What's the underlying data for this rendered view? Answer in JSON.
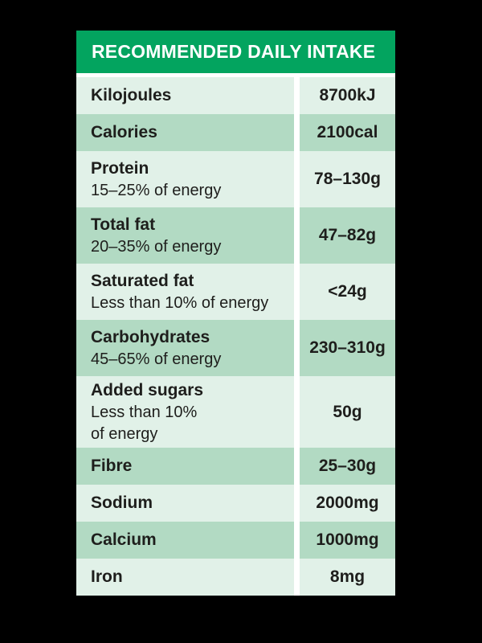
{
  "page": {
    "background": "#000000"
  },
  "table": {
    "header": {
      "title": "RECOMMENDED DAILY INTAKE"
    },
    "colors": {
      "page_bg": "#000000",
      "header_bg": "#03a45f",
      "header_text": "#ffffff",
      "row_light": "#e1f1e8",
      "row_medium": "#b2dac3",
      "divider": "#ffffff",
      "text": "#1e1e1c"
    },
    "rows": [
      {
        "label": "Kilojoules",
        "sublabel": "",
        "value": "8700kJ",
        "shade": "light"
      },
      {
        "label": "Calories",
        "sublabel": "",
        "value": "2100cal",
        "shade": "medium"
      },
      {
        "label": "Protein",
        "sublabel": "15–25% of energy",
        "value": "78–130g",
        "shade": "light"
      },
      {
        "label": "Total fat",
        "sublabel": "20–35% of energy",
        "value": "47–82g",
        "shade": "medium"
      },
      {
        "label": "Saturated fat",
        "sublabel": "Less than 10% of energy",
        "value": "<24g",
        "shade": "light"
      },
      {
        "label": "Carbohydrates",
        "sublabel": "45–65% of energy",
        "value": "230–310g",
        "shade": "medium"
      },
      {
        "label": "Added sugars",
        "sublabel": "Less than 10%\nof energy",
        "value": "50g",
        "shade": "light"
      },
      {
        "label": "Fibre",
        "sublabel": "",
        "value": "25–30g",
        "shade": "medium"
      },
      {
        "label": "Sodium",
        "sublabel": "",
        "value": "2000mg",
        "shade": "light"
      },
      {
        "label": "Calcium",
        "sublabel": "",
        "value": "1000mg",
        "shade": "medium"
      },
      {
        "label": "Iron",
        "sublabel": "",
        "value": "8mg",
        "shade": "light"
      }
    ]
  }
}
